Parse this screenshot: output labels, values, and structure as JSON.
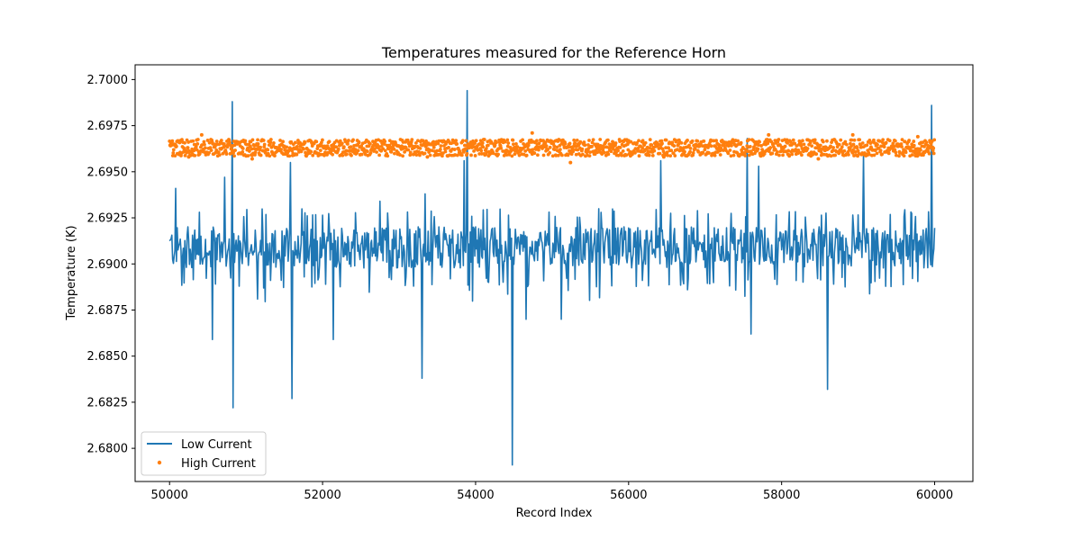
{
  "chart_data": {
    "type": "line",
    "title": "Temperatures measured for the Reference Horn",
    "xlabel": "Record Index",
    "ylabel": "Temperature (K)",
    "xlim": [
      49550,
      60500
    ],
    "ylim": [
      2.6782,
      2.7008
    ],
    "x_ticks": [
      50000,
      52000,
      54000,
      56000,
      58000,
      60000
    ],
    "x_tick_labels": [
      "50000",
      "52000",
      "54000",
      "56000",
      "58000",
      "60000"
    ],
    "y_ticks": [
      2.68,
      2.6825,
      2.685,
      2.6875,
      2.69,
      2.6925,
      2.695,
      2.6975,
      2.7
    ],
    "y_tick_labels": [
      "2.6800",
      "2.6825",
      "2.6850",
      "2.6875",
      "2.6900",
      "2.6925",
      "2.6950",
      "2.6975",
      "2.7000"
    ],
    "legend_position": "lower-left",
    "grid": false,
    "series": [
      {
        "name": "Low Current",
        "style": "line",
        "color": "#1f77b4",
        "x_range": [
          50000,
          60000
        ],
        "baseline": 2.691,
        "band": [
          2.6893,
          2.6925
        ],
        "spikes": [
          {
            "x": 50080,
            "y": 2.6941
          },
          {
            "x": 50560,
            "y": 2.6859
          },
          {
            "x": 50720,
            "y": 2.6947
          },
          {
            "x": 50820,
            "y": 2.6988
          },
          {
            "x": 50830,
            "y": 2.6822
          },
          {
            "x": 51580,
            "y": 2.6955
          },
          {
            "x": 51600,
            "y": 2.6827
          },
          {
            "x": 52140,
            "y": 2.6859
          },
          {
            "x": 52750,
            "y": 2.6934
          },
          {
            "x": 53300,
            "y": 2.6838
          },
          {
            "x": 53340,
            "y": 2.6938
          },
          {
            "x": 53850,
            "y": 2.6956
          },
          {
            "x": 53890,
            "y": 2.6994
          },
          {
            "x": 54480,
            "y": 2.6791
          },
          {
            "x": 54660,
            "y": 2.687
          },
          {
            "x": 55120,
            "y": 2.687
          },
          {
            "x": 56420,
            "y": 2.6956
          },
          {
            "x": 57550,
            "y": 2.6968
          },
          {
            "x": 57600,
            "y": 2.6862
          },
          {
            "x": 57700,
            "y": 2.6953
          },
          {
            "x": 58600,
            "y": 2.6832
          },
          {
            "x": 59070,
            "y": 2.696
          },
          {
            "x": 59960,
            "y": 2.6986
          }
        ]
      },
      {
        "name": "High Current",
        "style": "scatter",
        "color": "#ff7f0e",
        "x_range": [
          50000,
          60000
        ],
        "baseline": 2.6963,
        "band": [
          2.6958,
          2.6968
        ],
        "outliers": [
          {
            "x": 50250,
            "y": 2.6958
          },
          {
            "x": 50420,
            "y": 2.697
          },
          {
            "x": 51080,
            "y": 2.6957
          },
          {
            "x": 53370,
            "y": 2.6958
          },
          {
            "x": 54740,
            "y": 2.6971
          },
          {
            "x": 55240,
            "y": 2.6955
          },
          {
            "x": 56460,
            "y": 2.6958
          },
          {
            "x": 57830,
            "y": 2.697
          },
          {
            "x": 58480,
            "y": 2.6957
          },
          {
            "x": 58930,
            "y": 2.697
          },
          {
            "x": 59780,
            "y": 2.6969
          }
        ]
      }
    ]
  }
}
